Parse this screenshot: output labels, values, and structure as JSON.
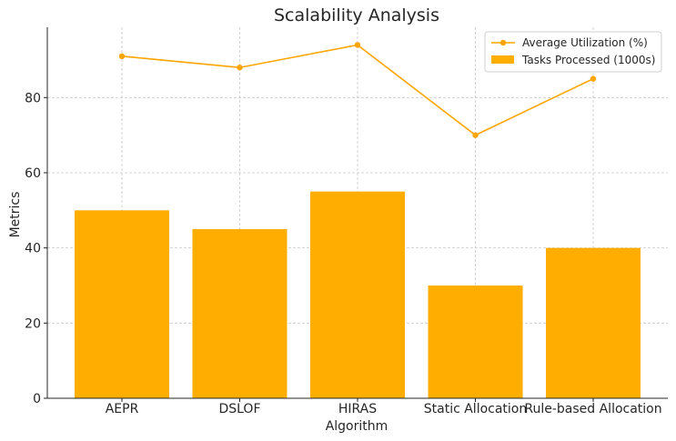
{
  "chart_data": {
    "type": "bar",
    "title": "Scalability Analysis",
    "xlabel": "Algorithm",
    "ylabel": "Metrics",
    "categories": [
      "AEPR",
      "DSLOF",
      "HIRAS",
      "Static Allocation",
      "Rule-based Allocation"
    ],
    "ylim": [
      0,
      98.7
    ],
    "yticks": [
      0,
      20,
      40,
      60,
      80
    ],
    "grid": true,
    "legend_position": "top-right",
    "series": [
      {
        "name": "Tasks Processed (1000s)",
        "kind": "bar",
        "color": "#ffae00",
        "values": [
          50,
          45,
          55,
          30,
          40
        ]
      },
      {
        "name": "Average Utilization (%)",
        "kind": "line",
        "color": "#ffa500",
        "values": [
          91,
          88,
          94,
          70,
          85
        ]
      }
    ]
  }
}
